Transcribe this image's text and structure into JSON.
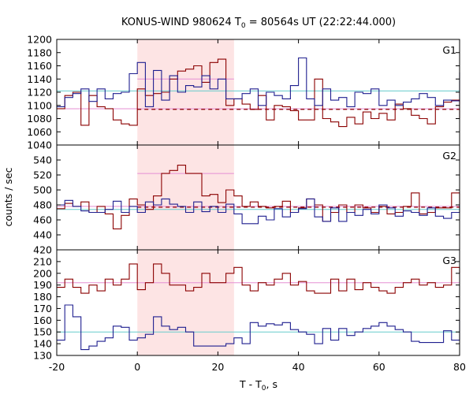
{
  "chart_data": {
    "type": "line",
    "title": "KONUS-WIND 980624 T₀ = 80564s UT (22:22:44.000)",
    "title_parts": {
      "prefix": "KONUS-WIND 980624 T",
      "subscript": "0",
      "suffix": " = 80564s UT (22:22:44.000)"
    },
    "xlabel_parts": {
      "prefix": "T - T",
      "subscript": "0",
      "suffix": ", s"
    },
    "ylabel": "counts / sec",
    "xlim": [
      -20,
      80
    ],
    "xticks": [
      -20,
      0,
      20,
      40,
      60,
      80
    ],
    "highlight_interval": [
      0,
      24
    ],
    "colors": {
      "highlight": "#fde4e4",
      "series_blue": "#1f1f8f",
      "series_red": "#8b0000",
      "bg_blue": "#66cccc",
      "bg_pink": "#e58fd3",
      "frame": "#000000"
    },
    "panels": [
      {
        "label": "G1",
        "ylim": [
          1040,
          1200
        ],
        "yticks": [
          1040,
          1060,
          1080,
          1100,
          1120,
          1140,
          1160,
          1180,
          1200
        ],
        "series_blue": {
          "x": [
            -20,
            -18,
            -16,
            -14,
            -12,
            -10,
            -8,
            -6,
            -4,
            -2,
            0,
            2,
            4,
            6,
            8,
            10,
            12,
            14,
            16,
            18,
            20,
            22,
            24,
            26,
            28,
            30,
            32,
            34,
            36,
            38,
            40,
            42,
            44,
            46,
            48,
            50,
            52,
            54,
            56,
            58,
            60,
            62,
            64,
            66,
            68,
            70,
            72,
            74,
            76,
            78,
            80
          ],
          "y": [
            1098,
            1112,
            1118,
            1125,
            1106,
            1125,
            1110,
            1118,
            1120,
            1148,
            1165,
            1098,
            1153,
            1108,
            1145,
            1120,
            1130,
            1128,
            1145,
            1125,
            1140,
            1110,
            1110,
            1118,
            1125,
            1100,
            1120,
            1115,
            1110,
            1130,
            1172,
            1110,
            1100,
            1125,
            1108,
            1112,
            1098,
            1120,
            1118,
            1125,
            1100,
            1108,
            1100,
            1105,
            1110,
            1118,
            1112,
            1100,
            1108,
            1107,
            1150
          ]
        },
        "series_red": {
          "x": [
            -20,
            -18,
            -16,
            -14,
            -12,
            -10,
            -8,
            -6,
            -4,
            -2,
            0,
            2,
            4,
            6,
            8,
            10,
            12,
            14,
            16,
            18,
            20,
            22,
            24,
            26,
            28,
            30,
            32,
            34,
            36,
            38,
            40,
            42,
            44,
            46,
            48,
            50,
            52,
            54,
            56,
            58,
            60,
            62,
            64,
            66,
            68,
            70,
            72,
            74,
            76,
            78,
            80
          ],
          "y": [
            1095,
            1115,
            1120,
            1070,
            1115,
            1098,
            1095,
            1078,
            1072,
            1070,
            1125,
            1115,
            1118,
            1120,
            1140,
            1152,
            1155,
            1160,
            1135,
            1165,
            1170,
            1100,
            1110,
            1102,
            1094,
            1115,
            1078,
            1100,
            1098,
            1092,
            1078,
            1078,
            1140,
            1080,
            1075,
            1068,
            1082,
            1072,
            1090,
            1080,
            1088,
            1078,
            1102,
            1095,
            1085,
            1080,
            1072,
            1098,
            1105,
            1108,
            1080
          ]
        },
        "bg_blue_level": 1122,
        "bg_pink_level": 1095,
        "pink_interval_level": 1140,
        "red_dashed_level": 1094
      },
      {
        "label": "G2",
        "ylim": [
          420,
          560
        ],
        "yticks": [
          420,
          440,
          460,
          480,
          500,
          520,
          540
        ],
        "series_blue": {
          "x": [
            -20,
            -18,
            -16,
            -14,
            -12,
            -10,
            -8,
            -6,
            -4,
            -2,
            0,
            2,
            4,
            6,
            8,
            10,
            12,
            14,
            16,
            18,
            20,
            22,
            24,
            26,
            28,
            30,
            32,
            34,
            36,
            38,
            40,
            42,
            44,
            46,
            48,
            50,
            52,
            54,
            56,
            58,
            60,
            62,
            64,
            66,
            68,
            70,
            72,
            74,
            76,
            78,
            80
          ],
          "y": [
            480,
            486,
            478,
            472,
            470,
            470,
            474,
            485,
            470,
            478,
            470,
            484,
            480,
            488,
            481,
            478,
            470,
            484,
            471,
            478,
            470,
            481,
            468,
            455,
            455,
            465,
            460,
            475,
            464,
            470,
            475,
            488,
            464,
            458,
            476,
            458,
            470,
            466,
            474,
            468,
            480,
            476,
            465,
            472,
            470,
            466,
            476,
            465,
            462,
            470,
            480
          ]
        },
        "series_red": {
          "x": [
            -20,
            -18,
            -16,
            -14,
            -12,
            -10,
            -8,
            -6,
            -4,
            -2,
            0,
            2,
            4,
            6,
            8,
            10,
            12,
            14,
            16,
            18,
            20,
            22,
            24,
            26,
            28,
            30,
            32,
            34,
            36,
            38,
            40,
            42,
            44,
            46,
            48,
            50,
            52,
            54,
            56,
            58,
            60,
            62,
            64,
            66,
            68,
            70,
            72,
            74,
            76,
            78,
            80
          ],
          "y": [
            475,
            482,
            478,
            484,
            470,
            478,
            468,
            448,
            466,
            488,
            480,
            474,
            492,
            522,
            526,
            533,
            522,
            522,
            492,
            494,
            483,
            500,
            492,
            478,
            484,
            478,
            476,
            478,
            485,
            470,
            476,
            488,
            480,
            458,
            470,
            480,
            470,
            480,
            476,
            470,
            478,
            468,
            470,
            478,
            496,
            468,
            470,
            476,
            476,
            496,
            480
          ]
        },
        "bg_blue_level": 474,
        "bg_pink_level": 478,
        "pink_interval_level": 522,
        "red_dashed_level": 477
      },
      {
        "label": "G3",
        "ylim": [
          130,
          220
        ],
        "yticks": [
          130,
          140,
          150,
          160,
          170,
          180,
          190,
          200,
          210,
          220
        ],
        "series_blue": {
          "x": [
            -20,
            -18,
            -16,
            -14,
            -12,
            -10,
            -8,
            -6,
            -4,
            -2,
            0,
            2,
            4,
            6,
            8,
            10,
            12,
            14,
            16,
            18,
            20,
            22,
            24,
            26,
            28,
            30,
            32,
            34,
            36,
            38,
            40,
            42,
            44,
            46,
            48,
            50,
            52,
            54,
            56,
            58,
            60,
            62,
            64,
            66,
            68,
            70,
            72,
            74,
            76,
            78,
            80
          ],
          "y": [
            143,
            173,
            163,
            135,
            138,
            142,
            145,
            155,
            154,
            143,
            145,
            148,
            163,
            155,
            152,
            154,
            150,
            138,
            138,
            138,
            138,
            140,
            145,
            140,
            158,
            155,
            157,
            156,
            158,
            152,
            150,
            148,
            140,
            153,
            143,
            153,
            147,
            150,
            153,
            155,
            158,
            155,
            152,
            150,
            142,
            141,
            141,
            141,
            151,
            143,
            160
          ]
        },
        "series_red": {
          "x": [
            -20,
            -18,
            -16,
            -14,
            -12,
            -10,
            -8,
            -6,
            -4,
            -2,
            0,
            2,
            4,
            6,
            8,
            10,
            12,
            14,
            16,
            18,
            20,
            22,
            24,
            26,
            28,
            30,
            32,
            34,
            36,
            38,
            40,
            42,
            44,
            46,
            48,
            50,
            52,
            54,
            56,
            58,
            60,
            62,
            64,
            66,
            68,
            70,
            72,
            74,
            76,
            78,
            80
          ],
          "y": [
            188,
            195,
            188,
            183,
            190,
            185,
            195,
            190,
            195,
            208,
            186,
            192,
            208,
            200,
            190,
            190,
            185,
            188,
            200,
            192,
            192,
            200,
            205,
            190,
            185,
            192,
            190,
            195,
            200,
            190,
            193,
            185,
            183,
            183,
            195,
            185,
            195,
            186,
            192,
            188,
            185,
            183,
            188,
            192,
            195,
            190,
            192,
            188,
            190,
            205,
            200
          ]
        },
        "bg_blue_level": 150,
        "bg_pink_level": 192,
        "pink_interval_level": null,
        "red_dashed_level": null
      }
    ]
  }
}
